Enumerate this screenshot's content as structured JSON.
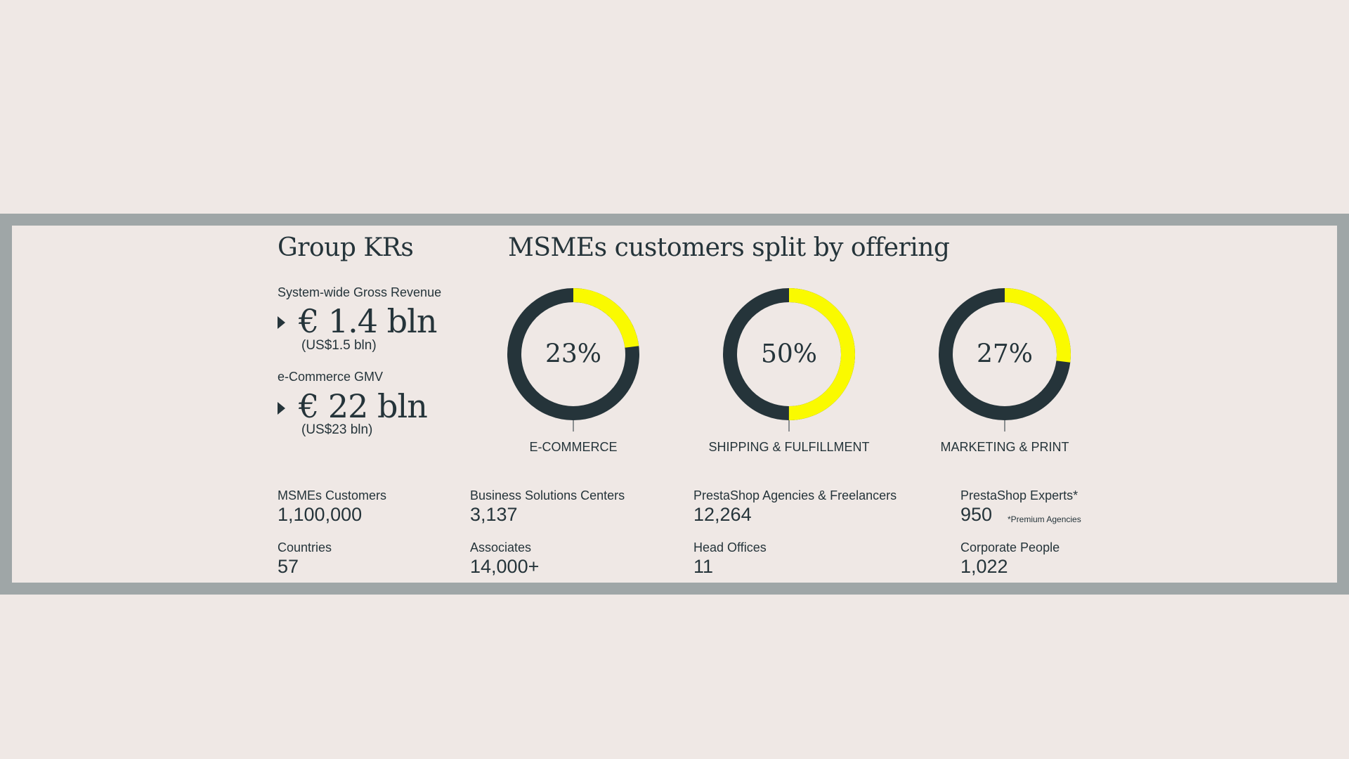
{
  "group_krs": {
    "title": "Group KRs",
    "metrics": [
      {
        "label": "System-wide Gross Revenue",
        "value": "€ 1.4 bln",
        "sub": "(US$1.5 bln)"
      },
      {
        "label": "e-Commerce GMV",
        "value": "€ 22 bln",
        "sub": "(US$23 bln)"
      }
    ]
  },
  "split": {
    "title": "MSMEs customers split by offering"
  },
  "chart_data": {
    "type": "pie",
    "title": "MSMEs customers split by offering",
    "charts": [
      {
        "label": "E-COMMERCE",
        "value": 23,
        "value_text": "23%"
      },
      {
        "label": "SHIPPING & FULFILLMENT",
        "value": 50,
        "value_text": "50%"
      },
      {
        "label": "MARKETING & PRINT",
        "value": 27,
        "value_text": "27%"
      }
    ],
    "colors": {
      "highlight": "#FAFA00",
      "base": "#25343A"
    }
  },
  "stats": [
    {
      "label": "MSMEs Customers",
      "value": "1,100,000"
    },
    {
      "label": "Business Solutions Centers",
      "value": "3,137"
    },
    {
      "label": "PrestaShop Agencies & Freelancers",
      "value": "12,264"
    },
    {
      "label": "PrestaShop Experts*",
      "value": "950",
      "note": "*Premium Agencies"
    },
    {
      "label": "Countries",
      "value": "57"
    },
    {
      "label": "Associates",
      "value": "14,000+"
    },
    {
      "label": "Head Offices",
      "value": "11"
    },
    {
      "label": "Corporate People",
      "value": "1,022"
    }
  ],
  "colors": {
    "background": "#EFE8E5",
    "frame": "#9FA6A7",
    "text": "#25343A",
    "accent": "#FAFA00"
  }
}
